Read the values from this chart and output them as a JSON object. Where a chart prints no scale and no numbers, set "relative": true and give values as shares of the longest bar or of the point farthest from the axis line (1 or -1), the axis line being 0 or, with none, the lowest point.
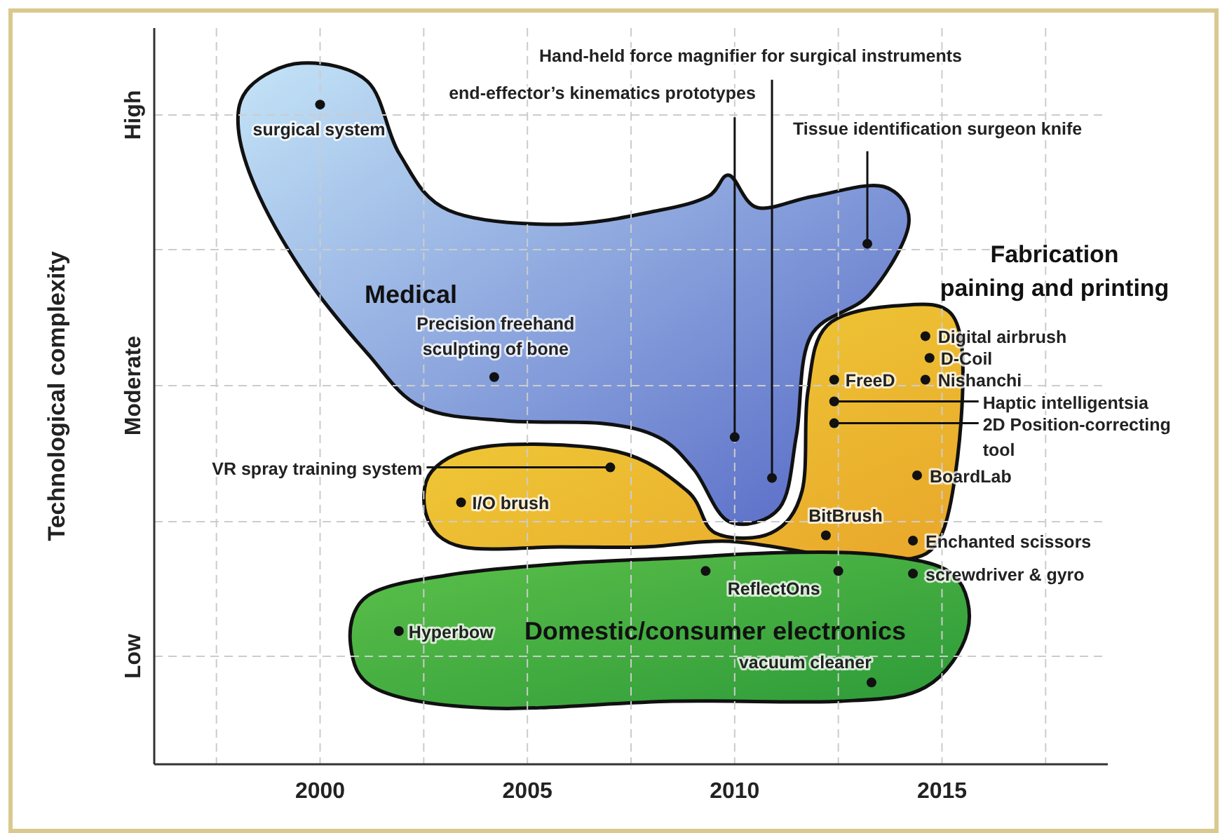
{
  "chart_data": {
    "type": "scatter",
    "ylabel": "Technological complexity",
    "relative": true,
    "xlim": [
      1996,
      2019
    ],
    "xticks": [
      {
        "value": 1997.5,
        "label": null
      },
      2000,
      {
        "value": 2002.5,
        "label": null
      },
      2005,
      {
        "value": 2007.5,
        "label": null
      },
      2010,
      {
        "value": 2012.5,
        "label": null
      },
      2015,
      {
        "value": 2017.5,
        "label": null
      }
    ],
    "grid": true,
    "marker": "circle",
    "series": [
      {
        "name": "Medical",
        "color": "#111111",
        "x": [
          2000,
          2010.0,
          2010.9,
          2013.2,
          2004.2
        ],
        "values": [
          1,
          0.496,
          0.434,
          0.789,
          0.587
        ]
      },
      {
        "name": "Fabrication paining and printing",
        "color": "#111111",
        "x": [
          2007.0,
          2003.4,
          2012.4,
          2014.6,
          2014.7,
          2014.6,
          2012.4,
          2012.4,
          2014.4,
          2012.2,
          2014.3
        ],
        "values": [
          0.45,
          0.397,
          0.583,
          0.649,
          0.616,
          0.583,
          0.55,
          0.517,
          0.438,
          0.347,
          0.339
        ]
      },
      {
        "name": "Domestic/consumer electronics",
        "color": "#111111",
        "x": [
          2014.3,
          2012.5,
          2009.3,
          2001.9,
          2013.3
        ],
        "values": [
          0.289,
          0.293,
          0.293,
          0.202,
          0.124
        ]
      }
    ],
    "annotations": [
      {
        "text": "surgical system",
        "x": 2000,
        "y": 1
      },
      {
        "text": "end-effector’s kinematics prototypes",
        "x": 2010.0,
        "y": 0.496
      },
      {
        "text": "Hand-held force magnifier for surgical instruments",
        "x": 2010.9,
        "y": 0.434
      },
      {
        "text": "Tissue identification surgeon knife",
        "x": 2013.2,
        "y": 0.789
      },
      {
        "text": "Precision freehand sculpting of bone",
        "x": 2004.2,
        "y": 0.587
      },
      {
        "text": "VR spray training system",
        "x": 2007.0,
        "y": 0.45
      },
      {
        "text": "I/O brush",
        "x": 2003.4,
        "y": 0.397
      },
      {
        "text": "FreeD",
        "x": 2012.4,
        "y": 0.583
      },
      {
        "text": "Digital airbrush",
        "x": 2014.6,
        "y": 0.649
      },
      {
        "text": "D-Coil",
        "x": 2014.7,
        "y": 0.616
      },
      {
        "text": "Nishanchi",
        "x": 2014.6,
        "y": 0.583
      },
      {
        "text": "Haptic intelligentsia",
        "x": 2012.4,
        "y": 0.55
      },
      {
        "text": "2D Position-correcting tool",
        "x": 2012.4,
        "y": 0.517
      },
      {
        "text": "BoardLab",
        "x": 2014.4,
        "y": 0.438
      },
      {
        "text": "BitBrush",
        "x": 2012.2,
        "y": 0.347
      },
      {
        "text": "Enchanted scissors",
        "x": 2014.3,
        "y": 0.339
      },
      {
        "text": "screwdriver & gyro",
        "x": 2014.3,
        "y": 0.289
      },
      {
        "text": "ReflectOns",
        "x": 2012.5,
        "y": 0.293
      },
      {
        "text": "Hyperbow",
        "x": 2001.9,
        "y": 0.202
      },
      {
        "text": "vacuum cleaner",
        "x": 2013.3,
        "y": 0.124
      },
      "Low",
      "Moderate",
      "High"
    ]
  }
}
